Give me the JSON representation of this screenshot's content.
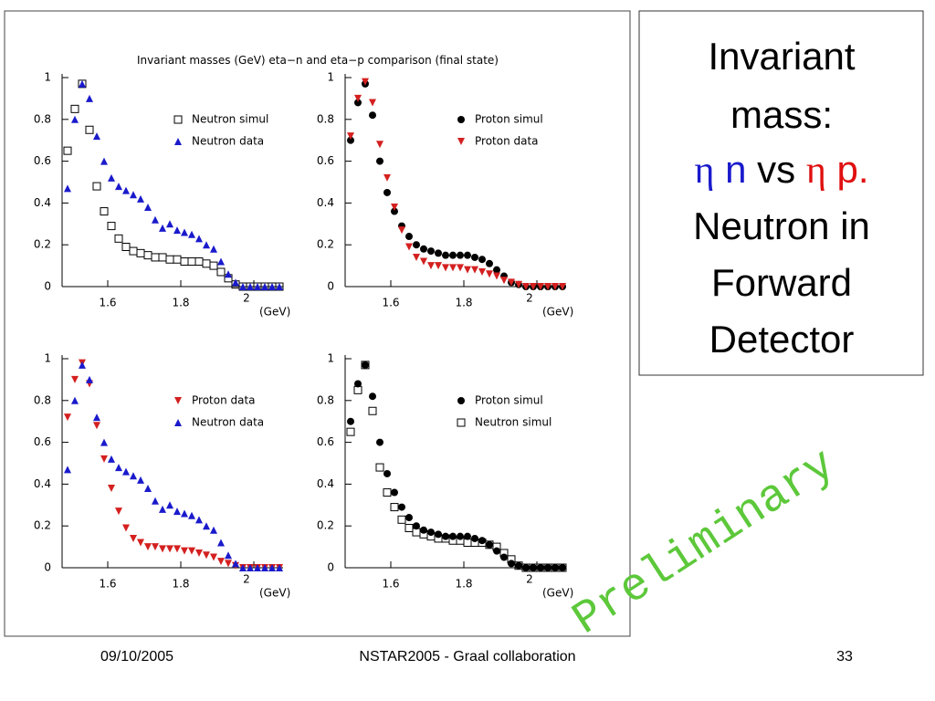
{
  "figure_title": "Invariant masses (GeV) eta−n and eta−p comparison (final state)",
  "heading": {
    "lines_top": [
      "Invariant",
      "mass:"
    ],
    "formula": [
      "η",
      "n",
      "vs",
      "η",
      "p."
    ],
    "lines_bottom": [
      "Neutron in",
      "Forward",
      "Detector"
    ]
  },
  "watermark": "Preliminary",
  "footer": {
    "date": "09/10/2005",
    "center": "NSTAR2005 - Graal collaboration",
    "page": "33"
  },
  "chart_data": [
    {
      "type": "scatter",
      "xlabel": "(GeV)",
      "xlim": [
        1.475,
        2.08
      ],
      "ylim": [
        0,
        1
      ],
      "xticks": [
        1.6,
        1.8,
        2
      ],
      "yticks": [
        0,
        0.2,
        0.4,
        0.6,
        0.8,
        1
      ],
      "x": [
        1.49,
        1.51,
        1.53,
        1.55,
        1.57,
        1.59,
        1.61,
        1.63,
        1.65,
        1.67,
        1.69,
        1.71,
        1.73,
        1.75,
        1.77,
        1.79,
        1.81,
        1.83,
        1.85,
        1.87,
        1.89,
        1.91,
        1.93,
        1.95,
        1.97,
        1.99,
        2.01,
        2.03,
        2.05,
        2.07
      ],
      "series": [
        {
          "name": "Neutron simul",
          "color": "#000000",
          "marker": "square-open",
          "values": [
            0.65,
            0.85,
            0.97,
            0.75,
            0.48,
            0.36,
            0.29,
            0.23,
            0.19,
            0.17,
            0.16,
            0.15,
            0.14,
            0.14,
            0.13,
            0.13,
            0.12,
            0.12,
            0.12,
            0.11,
            0.1,
            0.07,
            0.04,
            0.01,
            0,
            0,
            0,
            0,
            0,
            0
          ]
        },
        {
          "name": "Neutron data",
          "color": "#1a1acc",
          "marker": "triangle-up",
          "values": [
            0.47,
            0.8,
            0.97,
            0.9,
            0.72,
            0.6,
            0.52,
            0.48,
            0.46,
            0.44,
            0.42,
            0.38,
            0.32,
            0.28,
            0.3,
            0.27,
            0.26,
            0.25,
            0.23,
            0.2,
            0.18,
            0.12,
            0.06,
            0.02,
            0,
            0,
            0,
            0,
            0,
            0
          ]
        }
      ]
    },
    {
      "type": "scatter",
      "xlabel": "(GeV)",
      "xlim": [
        1.475,
        2.08
      ],
      "ylim": [
        0,
        1
      ],
      "xticks": [
        1.6,
        1.8,
        2
      ],
      "yticks": [
        0,
        0.2,
        0.4,
        0.6,
        0.8,
        1
      ],
      "x": [
        1.49,
        1.51,
        1.53,
        1.55,
        1.57,
        1.59,
        1.61,
        1.63,
        1.65,
        1.67,
        1.69,
        1.71,
        1.73,
        1.75,
        1.77,
        1.79,
        1.81,
        1.83,
        1.85,
        1.87,
        1.89,
        1.91,
        1.93,
        1.95,
        1.97,
        1.99,
        2.01,
        2.03,
        2.05,
        2.07
      ],
      "series": [
        {
          "name": "Proton simul",
          "color": "#000000",
          "marker": "circle",
          "values": [
            0.7,
            0.88,
            0.97,
            0.82,
            0.6,
            0.45,
            0.36,
            0.29,
            0.24,
            0.2,
            0.18,
            0.17,
            0.16,
            0.15,
            0.15,
            0.15,
            0.15,
            0.14,
            0.13,
            0.11,
            0.08,
            0.05,
            0.02,
            0.01,
            0,
            0,
            0,
            0,
            0,
            0
          ]
        },
        {
          "name": "Proton data",
          "color": "#d42020",
          "marker": "triangle-down",
          "values": [
            0.72,
            0.9,
            0.98,
            0.88,
            0.68,
            0.52,
            0.38,
            0.27,
            0.19,
            0.14,
            0.12,
            0.1,
            0.1,
            0.09,
            0.09,
            0.09,
            0.08,
            0.08,
            0.07,
            0.06,
            0.05,
            0.03,
            0.02,
            0.01,
            0,
            0,
            0,
            0,
            0,
            0
          ]
        }
      ]
    },
    {
      "type": "scatter",
      "xlabel": "(GeV)",
      "xlim": [
        1.475,
        2.08
      ],
      "ylim": [
        0,
        1
      ],
      "xticks": [
        1.6,
        1.8,
        2
      ],
      "yticks": [
        0,
        0.2,
        0.4,
        0.6,
        0.8,
        1
      ],
      "x": [
        1.49,
        1.51,
        1.53,
        1.55,
        1.57,
        1.59,
        1.61,
        1.63,
        1.65,
        1.67,
        1.69,
        1.71,
        1.73,
        1.75,
        1.77,
        1.79,
        1.81,
        1.83,
        1.85,
        1.87,
        1.89,
        1.91,
        1.93,
        1.95,
        1.97,
        1.99,
        2.01,
        2.03,
        2.05,
        2.07
      ],
      "series": [
        {
          "name": "Proton data",
          "color": "#d42020",
          "marker": "triangle-down",
          "values": [
            0.72,
            0.9,
            0.98,
            0.88,
            0.68,
            0.52,
            0.38,
            0.27,
            0.19,
            0.14,
            0.12,
            0.1,
            0.1,
            0.09,
            0.09,
            0.09,
            0.08,
            0.08,
            0.07,
            0.06,
            0.05,
            0.03,
            0.02,
            0.01,
            0,
            0,
            0,
            0,
            0,
            0
          ]
        },
        {
          "name": "Neutron data",
          "color": "#1a1acc",
          "marker": "triangle-up",
          "values": [
            0.47,
            0.8,
            0.97,
            0.9,
            0.72,
            0.6,
            0.52,
            0.48,
            0.46,
            0.44,
            0.42,
            0.38,
            0.32,
            0.28,
            0.3,
            0.27,
            0.26,
            0.25,
            0.23,
            0.2,
            0.18,
            0.12,
            0.06,
            0.02,
            0,
            0,
            0,
            0,
            0,
            0
          ]
        }
      ]
    },
    {
      "type": "scatter",
      "xlabel": "(GeV)",
      "xlim": [
        1.475,
        2.08
      ],
      "ylim": [
        0,
        1
      ],
      "xticks": [
        1.6,
        1.8,
        2
      ],
      "yticks": [
        0,
        0.2,
        0.4,
        0.6,
        0.8,
        1
      ],
      "x": [
        1.49,
        1.51,
        1.53,
        1.55,
        1.57,
        1.59,
        1.61,
        1.63,
        1.65,
        1.67,
        1.69,
        1.71,
        1.73,
        1.75,
        1.77,
        1.79,
        1.81,
        1.83,
        1.85,
        1.87,
        1.89,
        1.91,
        1.93,
        1.95,
        1.97,
        1.99,
        2.01,
        2.03,
        2.05,
        2.07
      ],
      "series": [
        {
          "name": "Proton simul",
          "color": "#000000",
          "marker": "circle",
          "values": [
            0.7,
            0.88,
            0.97,
            0.82,
            0.6,
            0.45,
            0.36,
            0.29,
            0.24,
            0.2,
            0.18,
            0.17,
            0.16,
            0.15,
            0.15,
            0.15,
            0.15,
            0.14,
            0.13,
            0.11,
            0.08,
            0.05,
            0.02,
            0.01,
            0,
            0,
            0,
            0,
            0,
            0
          ]
        },
        {
          "name": "Neutron simul",
          "color": "#000000",
          "marker": "square-open",
          "values": [
            0.65,
            0.85,
            0.97,
            0.75,
            0.48,
            0.36,
            0.29,
            0.23,
            0.19,
            0.17,
            0.16,
            0.15,
            0.14,
            0.14,
            0.13,
            0.13,
            0.12,
            0.12,
            0.12,
            0.11,
            0.1,
            0.07,
            0.04,
            0.01,
            0,
            0,
            0,
            0,
            0,
            0
          ]
        }
      ]
    }
  ]
}
